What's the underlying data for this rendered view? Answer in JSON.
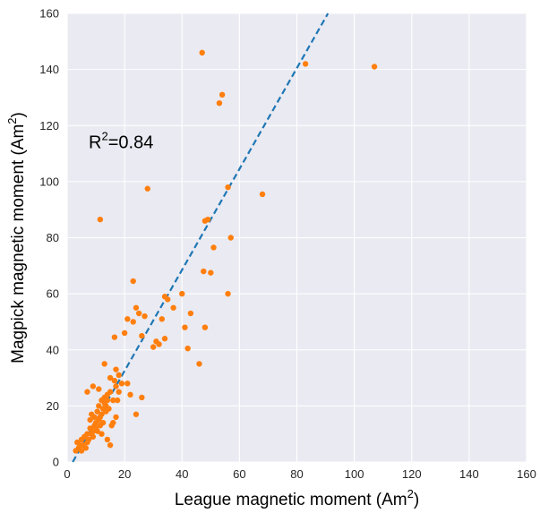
{
  "chart_data": {
    "type": "scatter",
    "title": "",
    "xlabel": {
      "main": "League magnetic moment (Am",
      "sup": "2",
      "tail": ")"
    },
    "ylabel": {
      "main": "Magpick magnetic moment (Am",
      "sup": "2",
      "tail": ")"
    },
    "xlim": [
      0,
      160
    ],
    "ylim": [
      0,
      160
    ],
    "xticks": [
      0,
      20,
      40,
      60,
      80,
      100,
      120,
      140,
      160
    ],
    "yticks": [
      0,
      20,
      40,
      60,
      80,
      100,
      120,
      140,
      160
    ],
    "grid": true,
    "background": "#EAEAF2",
    "annotation": {
      "main": "R",
      "sup": "2",
      "tail": "=0.84",
      "x": 7.5,
      "y": 112
    },
    "fit_line": {
      "style": "dashed",
      "color": "#1F77B4",
      "slope": 1.8,
      "intercept": -3.5
    },
    "series": [
      {
        "color": "#FF7F0E",
        "points": [
          [
            3,
            4
          ],
          [
            3.5,
            7
          ],
          [
            4,
            5
          ],
          [
            4.5,
            6
          ],
          [
            5,
            8
          ],
          [
            5,
            4
          ],
          [
            5.5,
            6
          ],
          [
            6,
            9
          ],
          [
            6.5,
            5
          ],
          [
            7,
            7
          ],
          [
            7,
            10
          ],
          [
            7.5,
            8
          ],
          [
            8,
            12
          ],
          [
            8,
            15
          ],
          [
            8.5,
            10
          ],
          [
            8.5,
            17
          ],
          [
            9,
            11
          ],
          [
            9,
            9
          ],
          [
            9.5,
            13
          ],
          [
            9.5,
            16
          ],
          [
            10,
            12
          ],
          [
            10,
            14
          ],
          [
            10.5,
            18
          ],
          [
            10.5,
            11
          ],
          [
            11,
            15
          ],
          [
            11,
            20
          ],
          [
            11.5,
            13
          ],
          [
            11.5,
            16
          ],
          [
            12,
            17
          ],
          [
            12,
            22
          ],
          [
            12.5,
            19
          ],
          [
            12.5,
            14
          ],
          [
            13,
            21
          ],
          [
            13,
            23
          ],
          [
            13.5,
            20
          ],
          [
            13.5,
            18
          ],
          [
            14,
            22
          ],
          [
            14,
            24
          ],
          [
            14.5,
            19
          ],
          [
            15,
            25
          ],
          [
            15,
            30
          ],
          [
            15.5,
            13
          ],
          [
            16,
            14
          ],
          [
            16,
            22
          ],
          [
            16.5,
            29
          ],
          [
            17,
            27
          ],
          [
            17,
            33
          ],
          [
            17.5,
            22
          ],
          [
            18,
            25
          ],
          [
            18,
            31
          ],
          [
            19,
            28
          ],
          [
            7,
            25
          ],
          [
            9,
            27
          ],
          [
            11,
            26
          ],
          [
            13,
            35
          ],
          [
            15,
            6
          ],
          [
            17,
            16
          ],
          [
            11.5,
            86.5
          ],
          [
            12,
            10
          ],
          [
            14,
            8
          ],
          [
            20,
            46
          ],
          [
            21,
            51
          ],
          [
            21,
            28
          ],
          [
            22,
            24
          ],
          [
            23,
            50
          ],
          [
            23,
            64.5
          ],
          [
            24,
            55
          ],
          [
            24,
            17
          ],
          [
            25,
            53
          ],
          [
            26,
            45
          ],
          [
            26,
            23
          ],
          [
            27,
            52
          ],
          [
            28,
            97.5
          ],
          [
            30,
            41
          ],
          [
            31,
            43
          ],
          [
            32,
            42
          ],
          [
            33,
            51
          ],
          [
            34,
            44
          ],
          [
            34,
            59
          ],
          [
            35,
            58
          ],
          [
            37,
            55
          ],
          [
            40,
            60
          ],
          [
            41,
            48
          ],
          [
            42,
            40.5
          ],
          [
            43,
            53
          ],
          [
            46,
            35
          ],
          [
            47,
            146
          ],
          [
            47.5,
            68
          ],
          [
            48,
            86
          ],
          [
            48,
            48
          ],
          [
            49,
            86.5
          ],
          [
            50,
            67.5
          ],
          [
            51,
            76.5
          ],
          [
            53,
            128
          ],
          [
            54,
            131
          ],
          [
            56,
            98
          ],
          [
            56,
            60
          ],
          [
            57,
            80
          ],
          [
            68,
            95.5
          ],
          [
            83,
            142
          ],
          [
            107,
            141
          ],
          [
            16.5,
            44.5
          ]
        ]
      }
    ]
  }
}
